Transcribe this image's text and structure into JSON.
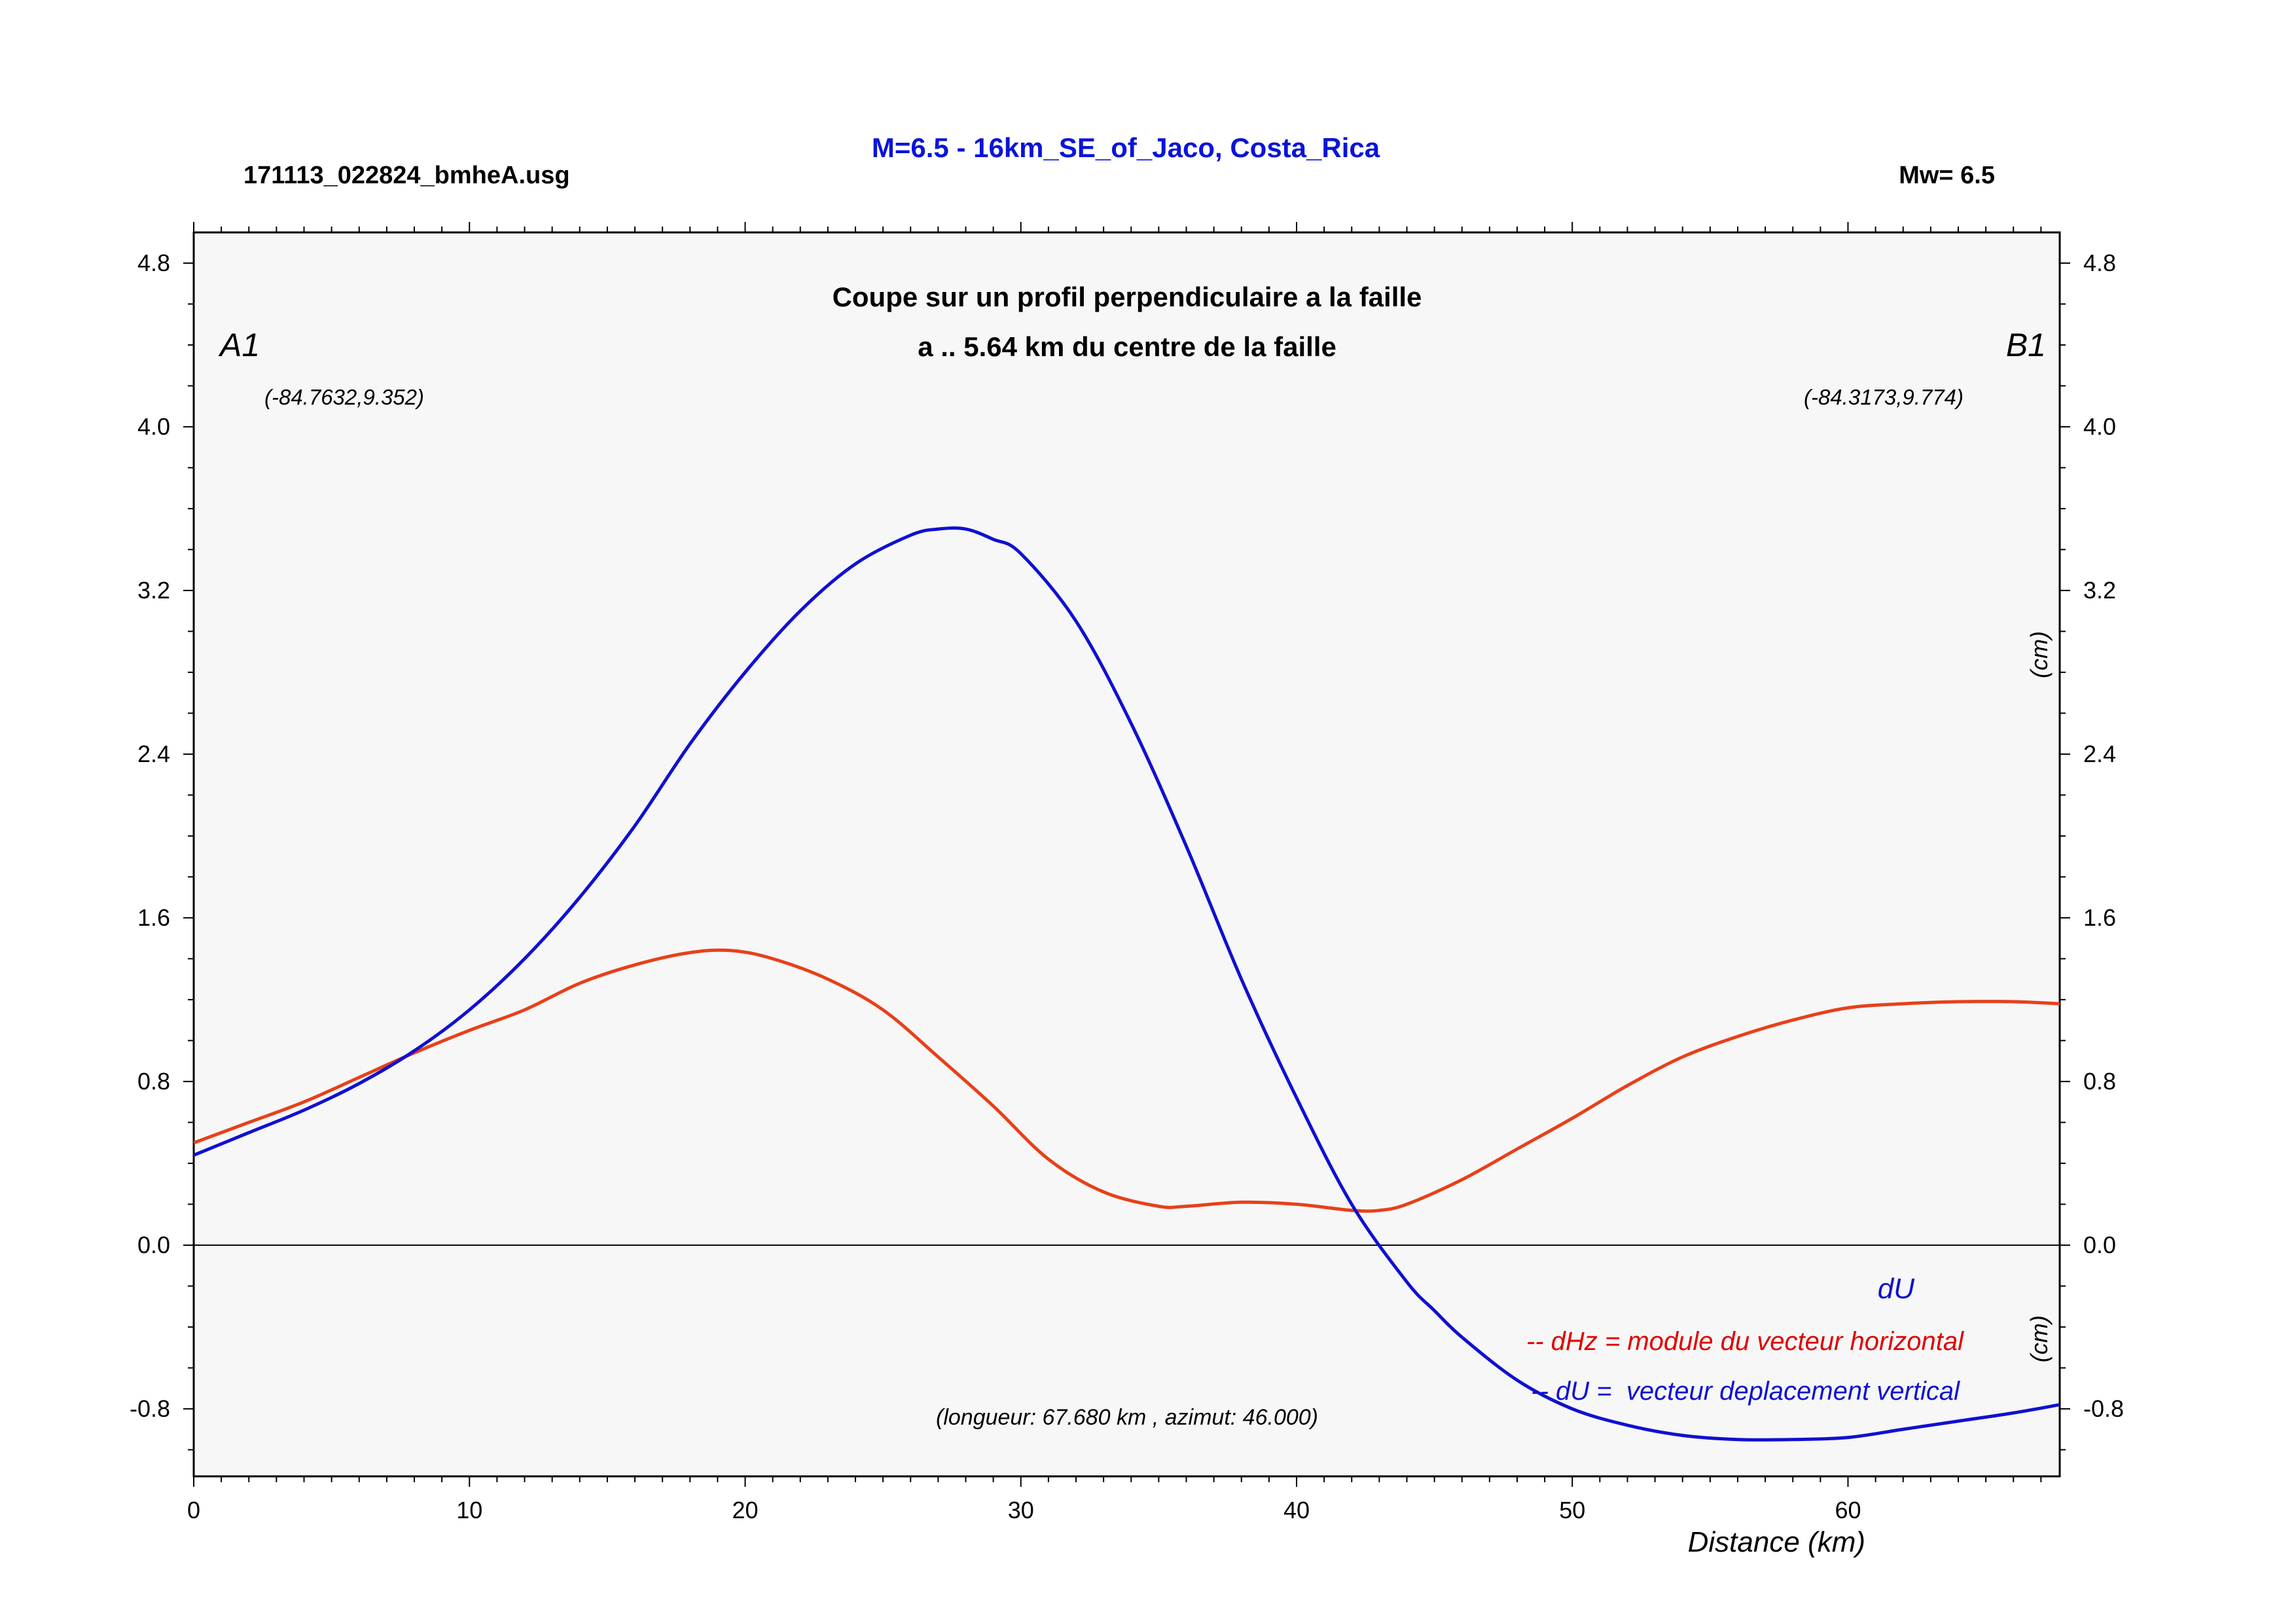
{
  "header": {
    "title": "M=6.5 - 16km_SE_of_Jaco, Costa_Rica",
    "file": "171113_022824_bmheA.usg",
    "magnitude": "Mw= 6.5"
  },
  "colors": {
    "title": "#0a14d8",
    "du": "#1010d0",
    "dhz": "#e8401a",
    "dhz_legend": "#e00000",
    "plot_bg": "#f7f7f7",
    "frame": "#000000"
  },
  "chart_data": {
    "type": "line",
    "title": "Coupe sur un profil perpendiculaire a la faille",
    "subtitle": "a .. 5.64 km du centre de la faille",
    "xlabel": "Distance (km)",
    "ylabel_right_upper": "(cm)",
    "ylabel_right_lower": "(cm)",
    "xlim": [
      0,
      67.68
    ],
    "ylim": [
      -1.13,
      4.95
    ],
    "x_ticks": [
      0,
      10,
      20,
      30,
      40,
      50,
      60
    ],
    "x_tick_labels": [
      "0",
      "10",
      "20",
      "30",
      "40",
      "50",
      "60"
    ],
    "y_ticks": [
      -0.8,
      0.0,
      0.8,
      1.6,
      2.4,
      3.2,
      4.0,
      4.8
    ],
    "y_tick_labels": [
      "-0.8",
      "0.0",
      "0.8",
      "1.6",
      "2.4",
      "3.2",
      "4.0",
      "4.8"
    ],
    "grid": false,
    "point_a": {
      "label": "A1",
      "coords": "(-84.7632,9.352)"
    },
    "point_b": {
      "label": "B1",
      "coords": "(-84.3173,9.774)"
    },
    "annotation": "(longueur: 67.680 km , azimut: 46.000)",
    "legend": {
      "position": "bottom-right",
      "du_marker": "dU",
      "dhz_entry": "-- dHz = module du vecteur horizontal",
      "du_entry": "-- dU =  vecteur deplacement vertical"
    },
    "series": [
      {
        "key": "du",
        "x": [
          0,
          2,
          4,
          6,
          8,
          10,
          12,
          14,
          16,
          18,
          20,
          22,
          24,
          26,
          27,
          28,
          29,
          30,
          32,
          34,
          36,
          38,
          40,
          42,
          44,
          45,
          46,
          48,
          50,
          52,
          54,
          56,
          58,
          60,
          62,
          64,
          66,
          67.68
        ],
        "y": [
          0.44,
          0.55,
          0.66,
          0.79,
          0.95,
          1.15,
          1.4,
          1.7,
          2.05,
          2.45,
          2.8,
          3.1,
          3.33,
          3.47,
          3.5,
          3.5,
          3.45,
          3.38,
          3.05,
          2.55,
          1.95,
          1.3,
          0.72,
          0.2,
          -0.18,
          -0.32,
          -0.45,
          -0.66,
          -0.8,
          -0.88,
          -0.93,
          -0.95,
          -0.95,
          -0.94,
          -0.9,
          -0.86,
          -0.82,
          -0.78
        ]
      },
      {
        "key": "dhz",
        "x": [
          0,
          2,
          4,
          6,
          8,
          10,
          12,
          14,
          16,
          18,
          19.5,
          21,
          23,
          25,
          27,
          29,
          31,
          33,
          35,
          36,
          38,
          40,
          42,
          43,
          44,
          46,
          48,
          50,
          52,
          54,
          56,
          58,
          60,
          62,
          64,
          66,
          67.68
        ],
        "y": [
          0.5,
          0.6,
          0.7,
          0.82,
          0.94,
          1.05,
          1.15,
          1.28,
          1.37,
          1.43,
          1.44,
          1.4,
          1.3,
          1.15,
          0.92,
          0.68,
          0.42,
          0.26,
          0.19,
          0.19,
          0.21,
          0.2,
          0.17,
          0.17,
          0.2,
          0.32,
          0.47,
          0.62,
          0.78,
          0.92,
          1.02,
          1.1,
          1.16,
          1.18,
          1.19,
          1.19,
          1.18
        ]
      }
    ]
  }
}
